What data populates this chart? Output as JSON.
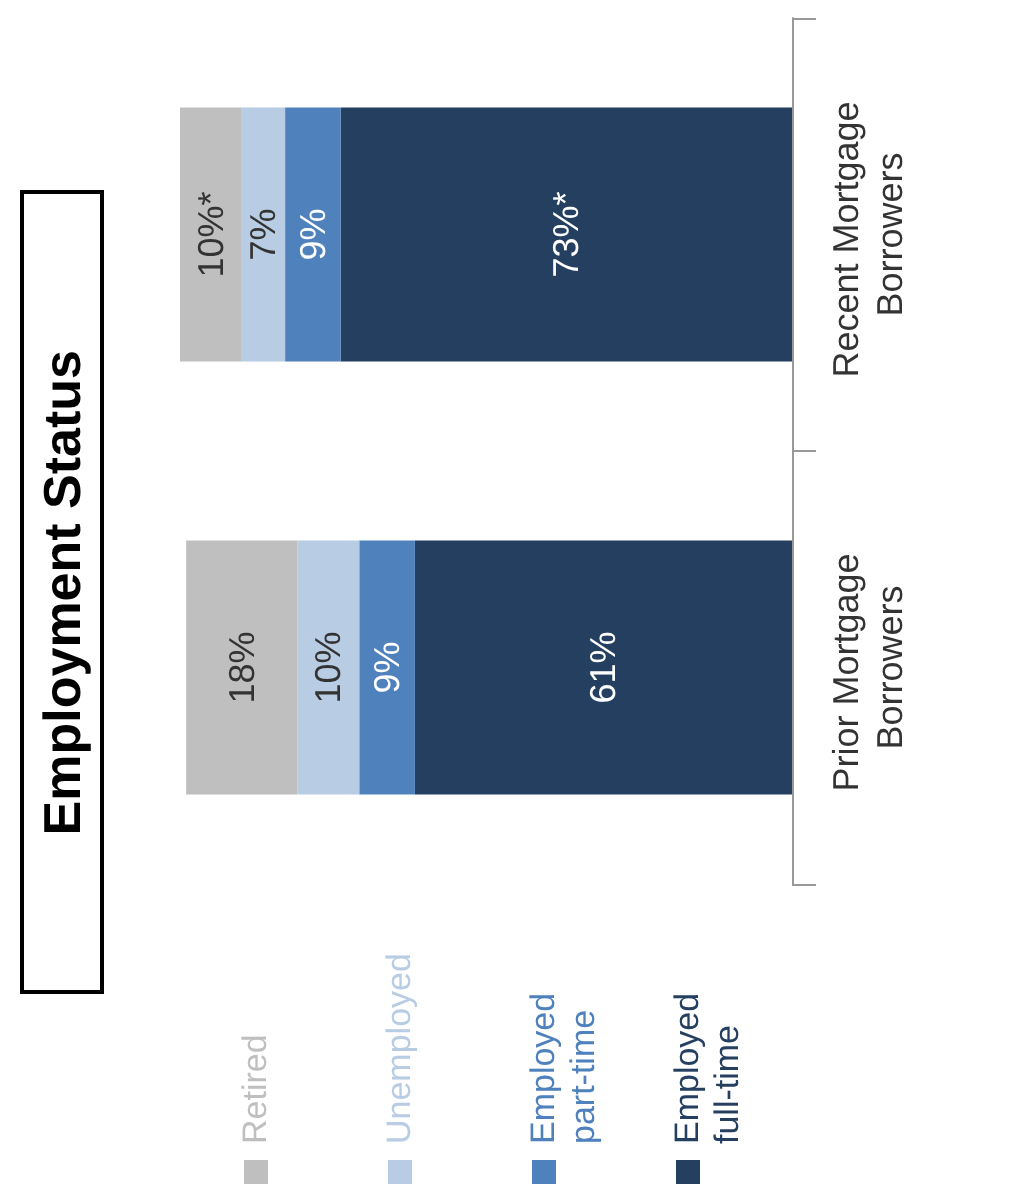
{
  "chart_data": {
    "type": "bar",
    "title": "Employment Status",
    "stacked": true,
    "orientation": "horizontal",
    "categories": [
      "Recent Mortgage Borrowers",
      "Prior Mortgage Borrowers"
    ],
    "legend": "bottom",
    "series": [
      {
        "name": "Employed full-time",
        "color": "#243f60",
        "values": [
          73,
          61
        ],
        "value_labels": [
          "73%*",
          "61%"
        ]
      },
      {
        "name": "Employed part-time",
        "color": "#4f81bd",
        "values": [
          9,
          9
        ],
        "value_labels": [
          "9%",
          "9%"
        ]
      },
      {
        "name": "Unemployed",
        "color": "#b8cce4",
        "values": [
          7,
          10
        ],
        "value_labels": [
          "7%",
          "10%"
        ]
      },
      {
        "name": "Retired",
        "color": "#bfbfbf",
        "values": [
          10,
          18
        ],
        "value_labels": [
          "10%*",
          "18%"
        ]
      }
    ]
  }
}
